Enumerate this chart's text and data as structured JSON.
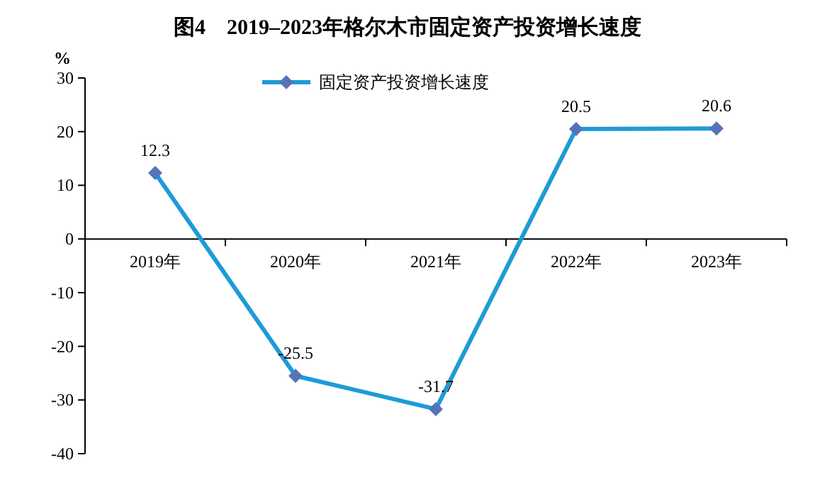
{
  "chart_data": {
    "type": "line",
    "title": "图4　2019–2023年格尔木市固定资产投资增长速度",
    "ylabel": "%",
    "categories": [
      "2019年",
      "2020年",
      "2021年",
      "2022年",
      "2023年"
    ],
    "series": [
      {
        "name": "固定资产投资增长速度",
        "color": "#1e9bd7",
        "colors": [
          "#5673b8",
          "#5673b8",
          "#5673b8",
          "#5673b8",
          "#5673b8"
        ],
        "values": [
          12.3,
          -25.5,
          -31.7,
          20.5,
          20.6
        ]
      }
    ],
    "ylim": [
      -40,
      30
    ],
    "yticks": [
      -40,
      -30,
      -20,
      -10,
      0,
      10,
      20,
      30
    ],
    "marker": "diamond",
    "line_style": "solid",
    "legend": "top",
    "data_labels": true
  }
}
